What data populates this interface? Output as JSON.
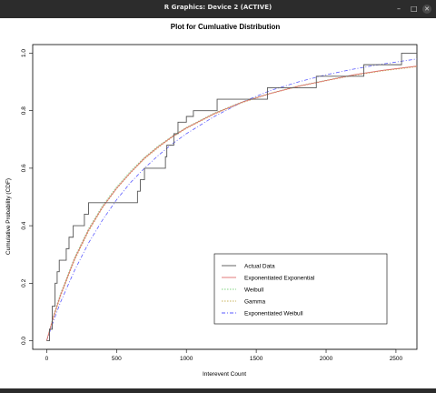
{
  "window": {
    "title": "R Graphics: Device 2 (ACTIVE)",
    "buttons": {
      "minimize": "–",
      "maximize": "□",
      "close": "✕"
    }
  },
  "colors": {
    "actual": "#555555",
    "exp_exponential": "#e06a6a",
    "weibull": "#7fd37f",
    "gamma": "#c8b25a",
    "exp_weibull": "#5a5aff"
  },
  "chart_data": {
    "type": "line",
    "title": "Plot for Cumluative Distribution",
    "xlabel": "Interevent Count",
    "ylabel": "Cumulative Probability (CDF)",
    "xlim": [
      -100,
      2650
    ],
    "ylim": [
      -0.03,
      1.03
    ],
    "x_ticks": [
      0,
      500,
      1000,
      1500,
      2000,
      2500
    ],
    "x_tick_labels": [
      "0",
      "500",
      "1000",
      "1500",
      "2000",
      "2500"
    ],
    "y_ticks": [
      0.0,
      0.2,
      0.4,
      0.6,
      0.8,
      1.0
    ],
    "y_tick_labels": [
      "0.0",
      "0.2",
      "0.4",
      "0.6",
      "0.8",
      "1.0"
    ],
    "legend": {
      "position": "bottom-right",
      "entries": [
        {
          "label": "Actual Data",
          "color": "#555555",
          "dash": "solid"
        },
        {
          "label": "Exponentiated Exponential",
          "color": "#e06a6a",
          "dash": "solid"
        },
        {
          "label": "Weibull",
          "color": "#7fd37f",
          "dash": "dotted"
        },
        {
          "label": "Gamma",
          "color": "#c8b25a",
          "dash": "dotted"
        },
        {
          "label": "Exponentiated Weibull",
          "color": "#5a5aff",
          "dash": "dashdot"
        }
      ]
    },
    "series": [
      {
        "name": "Actual Data",
        "step": true,
        "x": [
          0,
          20,
          40,
          60,
          75,
          90,
          140,
          160,
          190,
          270,
          300,
          650,
          670,
          700,
          850,
          860,
          910,
          940,
          960,
          1000,
          1050,
          1220,
          1260,
          1580,
          1620,
          1930,
          2270,
          2540,
          2650
        ],
        "y": [
          0.0,
          0.04,
          0.12,
          0.2,
          0.24,
          0.28,
          0.32,
          0.36,
          0.4,
          0.44,
          0.48,
          0.52,
          0.56,
          0.6,
          0.64,
          0.68,
          0.72,
          0.76,
          0.76,
          0.78,
          0.8,
          0.84,
          0.84,
          0.88,
          0.88,
          0.92,
          0.96,
          1.0,
          1.0
        ]
      },
      {
        "name": "Exponentiated Exponential",
        "x": [
          0,
          50,
          100,
          200,
          300,
          400,
          500,
          600,
          700,
          800,
          900,
          1000,
          1200,
          1400,
          1600,
          1800,
          2000,
          2200,
          2400,
          2650
        ],
        "y": [
          0.0,
          0.085,
          0.16,
          0.285,
          0.385,
          0.465,
          0.53,
          0.585,
          0.635,
          0.675,
          0.71,
          0.74,
          0.79,
          0.83,
          0.86,
          0.885,
          0.905,
          0.925,
          0.94,
          0.955
        ]
      },
      {
        "name": "Weibull",
        "x": [
          0,
          50,
          100,
          200,
          300,
          400,
          500,
          600,
          700,
          800,
          900,
          1000,
          1200,
          1400,
          1600,
          1800,
          2000,
          2200,
          2400,
          2650
        ],
        "y": [
          0.0,
          0.09,
          0.165,
          0.29,
          0.39,
          0.47,
          0.535,
          0.59,
          0.638,
          0.678,
          0.712,
          0.742,
          0.792,
          0.831,
          0.861,
          0.886,
          0.906,
          0.925,
          0.94,
          0.955
        ]
      },
      {
        "name": "Gamma",
        "x": [
          0,
          50,
          100,
          200,
          300,
          400,
          500,
          600,
          700,
          800,
          900,
          1000,
          1200,
          1400,
          1600,
          1800,
          2000,
          2200,
          2400,
          2650
        ],
        "y": [
          0.0,
          0.08,
          0.155,
          0.28,
          0.38,
          0.462,
          0.528,
          0.583,
          0.632,
          0.672,
          0.708,
          0.738,
          0.788,
          0.828,
          0.859,
          0.884,
          0.904,
          0.923,
          0.938,
          0.953
        ]
      },
      {
        "name": "Exponentiated Weibull",
        "x": [
          0,
          50,
          100,
          200,
          300,
          400,
          500,
          600,
          700,
          800,
          900,
          1000,
          1200,
          1400,
          1600,
          1800,
          2000,
          2200,
          2400,
          2650
        ],
        "y": [
          0.0,
          0.07,
          0.135,
          0.245,
          0.34,
          0.42,
          0.49,
          0.55,
          0.6,
          0.645,
          0.685,
          0.72,
          0.78,
          0.83,
          0.87,
          0.9,
          0.925,
          0.945,
          0.962,
          0.98
        ]
      }
    ]
  }
}
